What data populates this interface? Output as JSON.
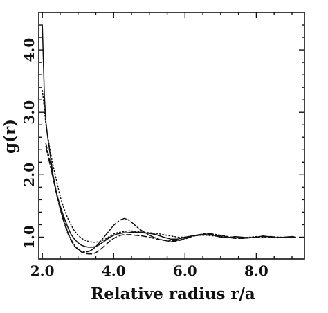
{
  "chart_data": {
    "type": "line",
    "title": "",
    "xlabel": "Relative radius r/a",
    "ylabel": "g(r)",
    "xlim": [
      1.9,
      9.35
    ],
    "ylim": [
      0.65,
      4.6
    ],
    "xticks": [
      2.0,
      4.0,
      6.0,
      8.0
    ],
    "yticks": [
      1.0,
      2.0,
      3.0,
      4.0
    ],
    "xtick_labels": [
      "2.0",
      "4.0",
      "6.0",
      "8.0"
    ],
    "ytick_labels": [
      "1.0",
      "2.0",
      "3.0",
      "4.0"
    ],
    "grid": false,
    "legend": "none",
    "series": [
      {
        "style": "solid",
        "x": [
          2.0,
          2.03,
          2.06,
          2.1,
          2.15,
          2.2,
          2.3,
          2.4,
          2.5,
          2.6,
          2.7,
          2.8,
          2.9,
          3.0,
          3.1,
          3.2,
          3.3,
          3.4,
          3.5,
          3.6,
          3.7,
          3.8,
          3.9,
          4.0,
          4.1,
          4.2,
          4.3,
          4.4,
          4.5,
          4.6,
          4.8,
          5.0,
          5.2,
          5.4,
          5.6,
          5.8,
          6.0,
          6.2,
          6.4,
          6.6,
          6.8,
          7.0,
          7.2,
          7.4,
          7.6,
          7.8,
          8.0,
          8.2,
          8.4,
          8.6,
          8.8,
          9.0,
          9.1
        ],
        "y": [
          4.4,
          3.8,
          3.25,
          2.85,
          2.6,
          2.4,
          2.0,
          1.7,
          1.5,
          1.33,
          1.18,
          1.05,
          0.97,
          0.91,
          0.87,
          0.85,
          0.84,
          0.84,
          0.85,
          0.88,
          0.92,
          0.96,
          1.0,
          1.03,
          1.05,
          1.06,
          1.07,
          1.07,
          1.08,
          1.08,
          1.07,
          1.06,
          1.04,
          1.0,
          0.97,
          0.97,
          1.0,
          1.02,
          1.03,
          1.04,
          1.03,
          1.0,
          0.99,
          1.01,
          1.0,
          0.99,
          1.0,
          1.02,
          1.0,
          0.99,
          1.0,
          1.01,
          1.0
        ]
      },
      {
        "style": "dotted",
        "x": [
          2.0,
          2.05,
          2.1,
          2.2,
          2.3,
          2.4,
          2.5,
          2.6,
          2.7,
          2.8,
          2.9,
          3.0,
          3.1,
          3.2,
          3.3,
          3.4,
          3.5,
          3.6,
          3.7,
          3.8,
          3.9,
          4.0,
          4.1,
          4.2,
          4.3,
          4.4,
          4.5,
          4.6,
          4.8,
          5.0,
          5.2,
          5.4,
          5.6,
          5.8,
          6.0,
          6.2,
          6.4,
          6.6,
          6.8,
          7.0,
          7.2,
          7.4,
          7.6,
          7.8,
          8.0,
          8.2,
          8.4,
          8.6,
          8.8,
          9.0,
          9.1
        ],
        "y": [
          3.35,
          3.1,
          2.8,
          2.45,
          2.15,
          1.9,
          1.65,
          1.47,
          1.32,
          1.2,
          1.1,
          1.03,
          0.98,
          0.95,
          0.93,
          0.92,
          0.92,
          0.93,
          0.95,
          0.98,
          1.02,
          1.05,
          1.07,
          1.08,
          1.09,
          1.1,
          1.1,
          1.09,
          1.08,
          1.07,
          1.06,
          1.04,
          1.02,
          1.0,
          1.0,
          1.02,
          1.03,
          1.03,
          1.02,
          1.01,
          1.0,
          1.0,
          0.99,
          1.0,
          1.01,
          1.0,
          1.01,
          1.0,
          1.0,
          1.0,
          1.0
        ]
      },
      {
        "style": "dashed",
        "x": [
          2.1,
          2.2,
          2.3,
          2.4,
          2.5,
          2.6,
          2.7,
          2.8,
          2.9,
          3.0,
          3.1,
          3.2,
          3.3,
          3.4,
          3.5,
          3.6,
          3.7,
          3.8,
          3.9,
          4.0,
          4.1,
          4.2,
          4.3,
          4.4,
          4.5,
          4.6,
          4.8,
          5.0,
          5.2,
          5.4,
          5.6,
          5.8,
          6.0,
          6.2,
          6.4,
          6.6,
          6.8,
          7.0,
          7.2,
          7.4,
          7.6,
          7.8,
          8.0,
          8.2,
          8.4,
          8.6,
          8.8,
          9.0,
          9.1
        ],
        "y": [
          2.5,
          2.25,
          1.95,
          1.68,
          1.45,
          1.25,
          1.08,
          0.95,
          0.86,
          0.8,
          0.76,
          0.74,
          0.73,
          0.73,
          0.75,
          0.79,
          0.84,
          0.89,
          0.94,
          0.98,
          1.01,
          1.03,
          1.04,
          1.04,
          1.04,
          1.03,
          1.02,
          1.0,
          0.97,
          0.95,
          0.93,
          0.94,
          0.97,
          1.01,
          1.04,
          1.05,
          1.04,
          1.02,
          1.0,
          0.98,
          0.98,
          0.99,
          1.0,
          1.01,
          1.0,
          0.99,
          1.0,
          1.01,
          1.0
        ]
      },
      {
        "style": "dash-dot",
        "x": [
          2.1,
          2.2,
          2.3,
          2.4,
          2.5,
          2.6,
          2.7,
          2.8,
          2.9,
          3.0,
          3.1,
          3.2,
          3.3,
          3.4,
          3.5,
          3.6,
          3.7,
          3.8,
          3.9,
          4.0,
          4.1,
          4.2,
          4.3,
          4.4,
          4.5,
          4.6,
          4.7,
          4.8,
          5.0,
          5.2,
          5.4,
          5.6,
          5.8,
          6.0,
          6.2,
          6.4,
          6.6,
          6.8,
          7.0,
          7.2,
          7.4,
          7.6,
          7.8,
          8.0,
          8.2,
          8.4,
          8.6,
          8.8,
          9.0,
          9.1
        ],
        "y": [
          2.45,
          2.2,
          1.95,
          1.7,
          1.48,
          1.28,
          1.1,
          0.97,
          0.87,
          0.81,
          0.77,
          0.76,
          0.77,
          0.8,
          0.85,
          0.91,
          0.98,
          1.05,
          1.12,
          1.19,
          1.24,
          1.28,
          1.3,
          1.28,
          1.24,
          1.19,
          1.14,
          1.1,
          1.03,
          0.98,
          0.95,
          0.94,
          0.95,
          0.98,
          1.02,
          1.04,
          1.06,
          1.05,
          1.03,
          1.01,
          0.99,
          0.98,
          0.99,
          1.0,
          1.01,
          1.01,
          1.0,
          0.99,
          1.0,
          1.0
        ]
      }
    ]
  }
}
